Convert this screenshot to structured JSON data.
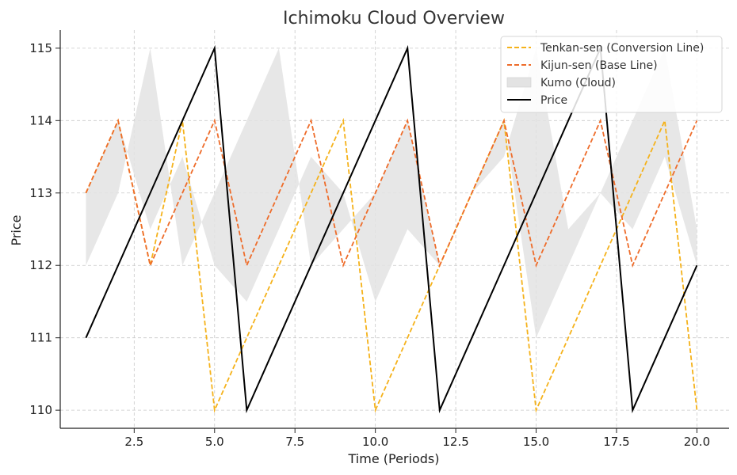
{
  "chart_data": {
    "type": "line",
    "title": "Ichimoku Cloud Overview",
    "xlabel": "Time (Periods)",
    "ylabel": "Price",
    "xlim": [
      0.2,
      21.0
    ],
    "ylim": [
      109.75,
      115.25
    ],
    "xticks": [
      2.5,
      5.0,
      7.5,
      10.0,
      12.5,
      15.0,
      17.5,
      20.0
    ],
    "xtick_labels": [
      "2.5",
      "5.0",
      "7.5",
      "10.0",
      "12.5",
      "15.0",
      "17.5",
      "20.0"
    ],
    "yticks": [
      110,
      111,
      112,
      113,
      114,
      115
    ],
    "ytick_labels": [
      "110",
      "111",
      "112",
      "113",
      "114",
      "115"
    ],
    "grid": true,
    "legend_position": "top-right",
    "x": [
      1,
      2,
      3,
      4,
      5,
      6,
      7,
      8,
      9,
      10,
      11,
      12,
      13,
      14,
      15,
      16,
      17,
      18,
      19,
      20
    ],
    "series": [
      {
        "name": "Tenkan-sen (Conversion Line)",
        "style": "dashed",
        "color": "#f5b21b",
        "values": [
          113,
          114,
          112,
          114,
          110,
          111,
          112,
          113,
          114,
          110,
          111,
          112,
          113,
          114,
          110,
          111,
          112,
          113,
          114,
          110
        ]
      },
      {
        "name": "Kijun-sen (Base Line)",
        "style": "dashed",
        "color": "#ee6c2a",
        "values": [
          113,
          114,
          112,
          113,
          114,
          112,
          113,
          114,
          112,
          113,
          114,
          112,
          113,
          114,
          112,
          113,
          114,
          112,
          113,
          114
        ]
      },
      {
        "name": "Price",
        "style": "solid",
        "color": "#000000",
        "values": [
          111,
          112,
          113,
          114,
          115,
          110,
          111,
          112,
          113,
          114,
          115,
          110,
          111,
          112,
          113,
          114,
          115,
          110,
          111,
          112
        ]
      }
    ],
    "cloud": {
      "name": "Kumo (Cloud)",
      "color": "#e3e3e3",
      "span_a": [
        113,
        114,
        112.5,
        113.5,
        112,
        111.5,
        112.5,
        113.5,
        113,
        111.5,
        112.5,
        112,
        113,
        114,
        111,
        112,
        113,
        112.5,
        113.5,
        112
      ],
      "span_b": [
        112,
        113,
        115,
        112,
        113,
        114,
        115,
        112,
        112.5,
        113,
        114,
        112,
        113,
        113.5,
        115,
        112.5,
        113,
        114,
        115,
        112.5
      ]
    }
  }
}
